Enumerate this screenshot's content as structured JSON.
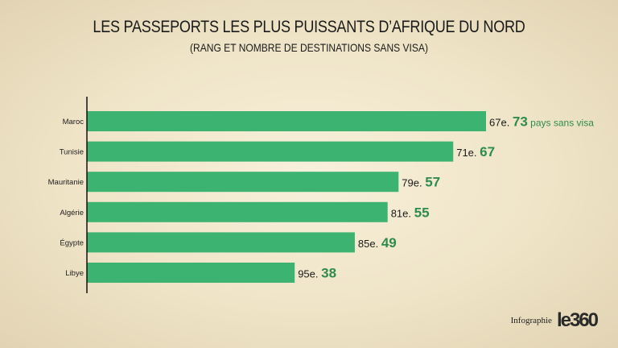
{
  "title": "LES PASSEPORTS LES PLUS PUISSANTS D’AFRIQUE DU NORD",
  "subtitle": "(RANG ET NOMBRE DE DESTINATIONS SANS VISA)",
  "footer": {
    "credit": "Infographie",
    "logo": "le360"
  },
  "colors": {
    "bar": "#3cb371",
    "value": "#2e8b4f",
    "rank": "#1a1a1a",
    "axis": "#111111"
  },
  "chart_data": {
    "type": "bar",
    "orientation": "horizontal",
    "categories": [
      "Maroc",
      "Tunisie",
      "Mauritanie",
      "Algérie",
      "Égypte",
      "Libye"
    ],
    "values": [
      73,
      67,
      57,
      55,
      49,
      38
    ],
    "ranks": [
      "67e.",
      "71e.",
      "79e.",
      "81e.",
      "85e.",
      "95e."
    ],
    "first_value_suffix": "pays sans visa",
    "xlim": [
      0,
      73
    ],
    "grid": false
  }
}
